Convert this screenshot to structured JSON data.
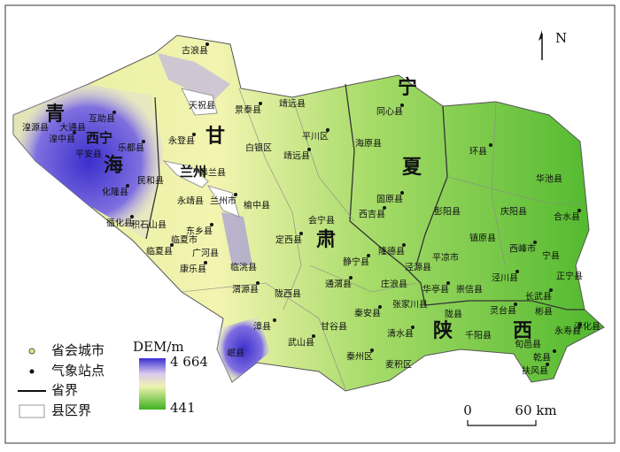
{
  "north": "N",
  "province_labels": [
    "青",
    "海",
    "甘",
    "肃",
    "宁",
    "夏",
    "陕",
    "西"
  ],
  "city_labels": [
    "兰州",
    "西宁"
  ],
  "county_labels": [
    "古浪县",
    "天祝县",
    "景泰县",
    "靖远县",
    "互助县",
    "湟源县",
    "湟中县",
    "大通县",
    "乐都县",
    "平安县",
    "永登县",
    "白银区",
    "平川区",
    "海原县",
    "同心县",
    "皋兰县",
    "靖远县",
    "民和县",
    "化隆县",
    "永靖县",
    "兰州市",
    "榆中县",
    "环县",
    "华池县",
    "固原县",
    "彭阳县",
    "西吉县",
    "会宁县",
    "循化县",
    "积石山县",
    "东乡县",
    "临夏市",
    "临夏县",
    "广河县",
    "康乐县",
    "临洮县",
    "定西县",
    "庆阳县",
    "合水县",
    "镇原县",
    "西峰市",
    "宁县",
    "隆德县",
    "平凉市",
    "静宁县",
    "泾源县",
    "泾川县",
    "正宁县",
    "渭源县",
    "陇西县",
    "通渭县",
    "庄浪县",
    "华亭县",
    "崇信县",
    "长武县",
    "张家川县",
    "灵台县",
    "彬县",
    "秦安县",
    "陇县",
    "漳县",
    "甘谷县",
    "清水县",
    "千阳县",
    "永寿县",
    "淳化县",
    "武山县",
    "旬邑县",
    "乾县",
    "岷县",
    "秦州区",
    "麦积区",
    "扶风县"
  ],
  "legend": {
    "capital": "省会城市",
    "station": "气象站点",
    "province_border": "省界",
    "county_border": "县区界",
    "dem_title": "DEM/m",
    "dem_max": "4 664",
    "dem_min": "441"
  },
  "scale_bar": {
    "start": "0",
    "end": "60 km"
  }
}
